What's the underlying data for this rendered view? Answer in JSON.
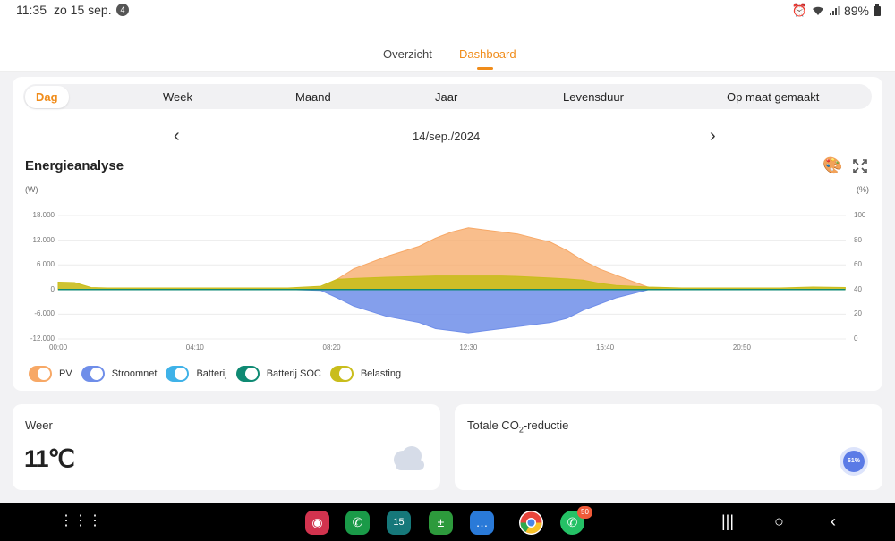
{
  "status": {
    "time": "11:35",
    "date": "zo 15 sep.",
    "notification_count": "4",
    "battery": "89%"
  },
  "nav": {
    "tabs": [
      "Overzicht",
      "Dashboard"
    ],
    "active_tab": "Dashboard"
  },
  "period": {
    "items": [
      "Dag",
      "Week",
      "Maand",
      "Jaar",
      "Levensduur",
      "Op maat gemaakt"
    ],
    "active": "Dag"
  },
  "date_nav": {
    "date": "14/sep./2024"
  },
  "chart": {
    "title": "Energieanalyse",
    "left_unit": "(W)",
    "right_unit": "(%)"
  },
  "chart_data": {
    "type": "area",
    "title": "Energieanalyse",
    "ylabel": "(W)",
    "y2label": "(%)",
    "ylim": [
      -12000,
      18000
    ],
    "y2lim": [
      0,
      100
    ],
    "y_ticks": [
      "18.000",
      "12.000",
      "6.000",
      "0",
      "-6.000",
      "-12.000"
    ],
    "y2_ticks": [
      "100",
      "80",
      "60",
      "40",
      "20",
      "0"
    ],
    "x_ticks": [
      "00:00",
      "04:10",
      "08:20",
      "12:30",
      "16:40",
      "20:50"
    ],
    "x": [
      "00:00",
      "00:30",
      "01:00",
      "01:30",
      "02:00",
      "04:00",
      "07:00",
      "08:00",
      "08:30",
      "09:00",
      "10:00",
      "11:00",
      "11:30",
      "12:00",
      "12:30",
      "13:00",
      "13:30",
      "14:00",
      "14:30",
      "15:00",
      "15:30",
      "16:00",
      "16:30",
      "17:00",
      "17:30",
      "18:00",
      "18:30",
      "19:00",
      "20:00",
      "21:00",
      "22:00",
      "23:00",
      "23:59"
    ],
    "series": [
      {
        "name": "PV",
        "color": "#f7a866",
        "values": [
          0,
          0,
          0,
          0,
          0,
          0,
          0,
          200,
          2500,
          5000,
          8000,
          10500,
          12500,
          14000,
          15000,
          14500,
          14000,
          13500,
          12500,
          11500,
          9500,
          7000,
          5000,
          3500,
          2000,
          500,
          0,
          0,
          0,
          0,
          0,
          0,
          0
        ]
      },
      {
        "name": "Stroomnet",
        "color": "#6f8ee9",
        "values": [
          0,
          0,
          0,
          0,
          0,
          0,
          0,
          -200,
          -2000,
          -4000,
          -6500,
          -8000,
          -9500,
          -10000,
          -10500,
          -10000,
          -9500,
          -9000,
          -8500,
          -8000,
          -7000,
          -5000,
          -3500,
          -2000,
          -1000,
          0,
          0,
          0,
          0,
          0,
          0,
          0,
          0
        ]
      },
      {
        "name": "Belasting",
        "color": "#c9bd1c",
        "values": [
          1800,
          1700,
          500,
          400,
          400,
          400,
          400,
          800,
          2500,
          2700,
          3000,
          3200,
          3300,
          3300,
          3300,
          3300,
          3300,
          3200,
          3000,
          2800,
          2600,
          2300,
          1500,
          1000,
          800,
          600,
          500,
          400,
          400,
          400,
          400,
          600,
          500
        ]
      },
      {
        "name": "Batterij SOC",
        "color": "#0f8a73",
        "values": [
          40,
          40,
          40,
          40,
          40,
          40,
          40,
          40,
          40,
          40,
          40,
          40,
          40,
          40,
          40,
          40,
          40,
          40,
          40,
          40,
          40,
          40,
          40,
          40,
          40,
          40,
          40,
          40,
          40,
          40,
          40,
          40,
          40
        ]
      },
      {
        "name": "Batterij",
        "color": "#3fb2e8",
        "values": [
          0,
          0,
          0,
          0,
          0,
          0,
          0,
          0,
          0,
          0,
          0,
          0,
          0,
          0,
          0,
          0,
          0,
          0,
          0,
          0,
          0,
          0,
          0,
          0,
          0,
          0,
          0,
          0,
          0,
          0,
          0,
          0,
          0
        ]
      }
    ],
    "legend": [
      "PV",
      "Stroomnet",
      "Batterij",
      "Batterij SOC",
      "Belasting"
    ],
    "legend_position": "bottom-left",
    "grid": true
  },
  "legend": {
    "items": [
      {
        "label": "PV",
        "color": "#f7a866"
      },
      {
        "label": "Stroomnet",
        "color": "#6f8ee9"
      },
      {
        "label": "Batterij",
        "color": "#3fb2e8"
      },
      {
        "label": "Batterij SOC",
        "color": "#0f8a73"
      },
      {
        "label": "Belasting",
        "color": "#c9bd1c"
      }
    ]
  },
  "weather": {
    "title": "Weer",
    "temperature": "11℃",
    "icon": "cloud-icon"
  },
  "co2": {
    "title_prefix": "Totale CO",
    "title_sub": "2",
    "title_suffix": "-reductie",
    "percent": "61%"
  },
  "dock": {
    "whatsapp_badge": "50",
    "calendar_day": "15",
    "apps": [
      "camera-app-icon",
      "phone-app-icon",
      "calendar-app-icon",
      "calculator-app-icon",
      "messages-app-icon",
      "chrome-app-icon",
      "whatsapp-app-icon"
    ]
  },
  "colors": {
    "accent": "#f08c1a"
  }
}
